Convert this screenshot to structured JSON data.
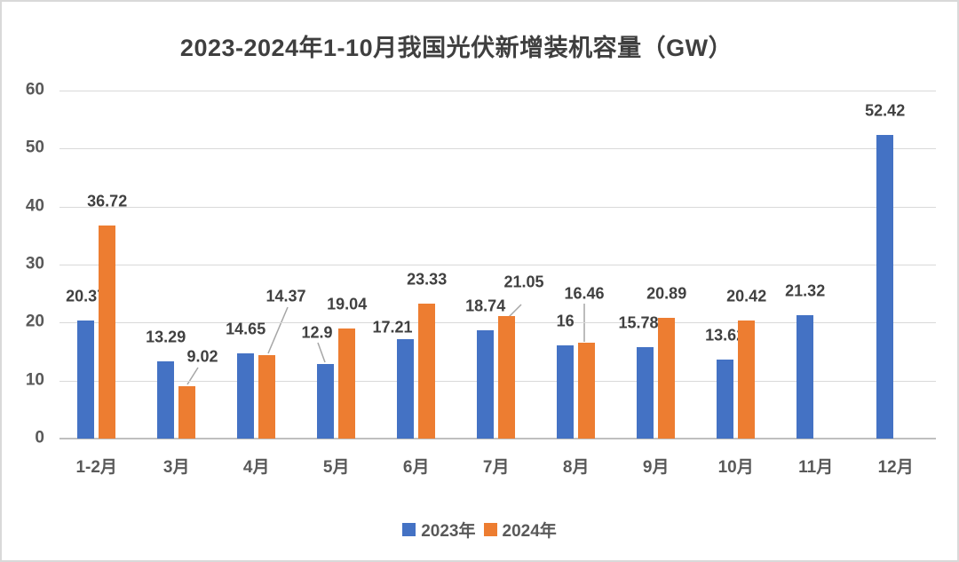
{
  "chart_data": {
    "type": "bar",
    "title": "2023-2024年1-10月我国光伏新增装机容量（GW）",
    "unit": "GW",
    "categories": [
      "1-2月",
      "3月",
      "4月",
      "5月",
      "6月",
      "7月",
      "8月",
      "9月",
      "10月",
      "11月",
      "12月"
    ],
    "series": [
      {
        "name": "2023年",
        "color": "#4472C4",
        "values": [
          20.37,
          13.29,
          14.65,
          12.9,
          17.21,
          18.74,
          16,
          15.78,
          13.62,
          21.32,
          52.42
        ],
        "labels": [
          "20.37",
          "13.29",
          "14.65",
          "12.9",
          "17.21",
          "18.74",
          "16",
          "15.78",
          "13.62",
          "21.32",
          "52.42"
        ]
      },
      {
        "name": "2024年",
        "color": "#ED7D31",
        "values": [
          36.72,
          9.02,
          14.37,
          19.04,
          23.33,
          21.05,
          16.46,
          20.89,
          20.42,
          null,
          null
        ],
        "labels": [
          "36.72",
          "9.02",
          "14.37",
          "19.04",
          "23.33",
          "21.05",
          "16.46",
          "20.89",
          "20.42",
          "",
          ""
        ]
      }
    ],
    "y_axis": {
      "min": 0,
      "max": 60,
      "step": 10,
      "tick_labels": [
        "0",
        "10",
        "20",
        "30",
        "40",
        "50",
        "60"
      ]
    },
    "grid": true,
    "data_labels": true,
    "legend_position": "bottom",
    "style_colors": {
      "gridline": "#d9d9d9",
      "axis_line": "#bfbfbf",
      "axis_text": "#595959",
      "label_text": "#404040",
      "title_text": "#3f3f3f",
      "leader_line": "#a6a6a6",
      "frame_border": "#d9d9d9",
      "background": "#ffffff"
    }
  }
}
